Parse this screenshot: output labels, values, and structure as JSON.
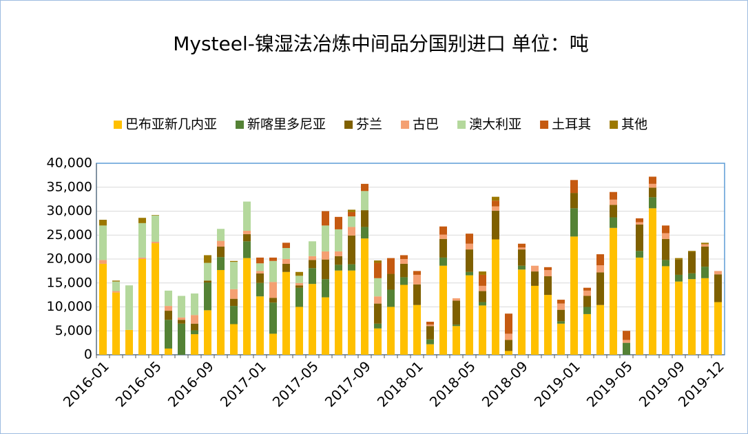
{
  "chart_data": {
    "type": "stacked_bar",
    "title": "Mysteel-镍湿法冶炼中间品分国别进口 单位：吨",
    "categories": [
      "2016-01",
      null,
      null,
      null,
      "2016-05",
      null,
      null,
      null,
      "2016-09",
      null,
      null,
      null,
      "2017-01",
      null,
      null,
      null,
      "2017-05",
      null,
      null,
      null,
      "2017-09",
      null,
      null,
      null,
      "2018-01",
      null,
      null,
      null,
      "2018-05",
      null,
      null,
      null,
      "2018-09",
      null,
      null,
      null,
      "2019-01",
      null,
      null,
      null,
      "2019-05",
      null,
      null,
      null,
      "2019-09",
      null,
      null,
      "2019-12"
    ],
    "series": [
      {
        "name": "巴布亚新几内亚",
        "color": "#ffc000",
        "values": [
          19000,
          13000,
          5200,
          20000,
          23300,
          1300,
          0,
          4300,
          9300,
          17700,
          6400,
          20200,
          12200,
          4400,
          17300,
          10000,
          14800,
          12000,
          17600,
          17600,
          24300,
          5500,
          10000,
          14600,
          10400,
          2200,
          18600,
          6000,
          16600,
          10300,
          24100,
          800,
          17800,
          14400,
          12500,
          6500,
          24700,
          8500,
          10400,
          26500,
          0,
          20300,
          30600,
          18500,
          15300,
          15800,
          16000,
          11000
        ]
      },
      {
        "name": "新喀里多尼亚",
        "color": "#548235",
        "values": [
          0,
          0,
          0,
          0,
          0,
          6000,
          6500,
          800,
          5800,
          2700,
          3800,
          3500,
          2800,
          6500,
          0,
          4000,
          3300,
          3800,
          1200,
          1300,
          2400,
          1000,
          3600,
          1600,
          0,
          1000,
          1700,
          300,
          700,
          700,
          0,
          0,
          800,
          0,
          0,
          500,
          5900,
          1500,
          0,
          2200,
          2500,
          1400,
          2300,
          1300,
          1400,
          1200,
          2400,
          0
        ]
      },
      {
        "name": "芬兰",
        "color": "#7f6000",
        "values": [
          0,
          0,
          0,
          0,
          0,
          1900,
          800,
          1400,
          400,
          2200,
          1500,
          1500,
          2000,
          1000,
          1700,
          500,
          1700,
          4100,
          1800,
          6000,
          3500,
          4200,
          3300,
          2800,
          4300,
          2800,
          3900,
          5000,
          4700,
          2300,
          6000,
          2300,
          3400,
          3000,
          3900,
          2400,
          3200,
          2300,
          6800,
          2600,
          0,
          5500,
          2000,
          4400,
          3200,
          4500,
          4200,
          5800
        ]
      },
      {
        "name": "古巴",
        "color": "#f4a072",
        "values": [
          800,
          300,
          0,
          300,
          300,
          1000,
          500,
          1800,
          0,
          1200,
          2000,
          700,
          500,
          3300,
          1000,
          500,
          800,
          1700,
          1000,
          1800,
          0,
          1500,
          0,
          1000,
          2000,
          300,
          900,
          500,
          1200,
          1100,
          900,
          1300,
          400,
          1200,
          1300,
          1300,
          0,
          1100,
          1500,
          1100,
          600,
          500,
          800,
          1200,
          0,
          0,
          500,
          700
        ]
      },
      {
        "name": "澳大利亚",
        "color": "#b4d89c",
        "values": [
          7200,
          2000,
          9300,
          7200,
          5500,
          3200,
          4500,
          4500,
          3700,
          2500,
          5700,
          6100,
          1600,
          4400,
          2300,
          1500,
          3100,
          5400,
          4600,
          2200,
          4000,
          3800,
          0,
          0,
          0,
          0,
          0,
          0,
          0,
          0,
          0,
          0,
          0,
          0,
          0,
          0,
          0,
          0,
          0,
          0,
          0,
          0,
          0,
          0,
          0,
          0,
          0,
          0
        ]
      },
      {
        "name": "土耳其",
        "color": "#c55a11",
        "values": [
          0,
          0,
          0,
          0,
          0,
          0,
          0,
          0,
          0,
          0,
          0,
          0,
          1200,
          700,
          1100,
          0,
          0,
          3000,
          2600,
          900,
          1500,
          3200,
          3300,
          800,
          800,
          600,
          1700,
          0,
          2100,
          2300,
          1200,
          4200,
          800,
          0,
          600,
          800,
          2700,
          600,
          2300,
          1600,
          1900,
          800,
          1500,
          1600,
          0,
          0,
          0,
          0
        ]
      },
      {
        "name": "其他",
        "color": "#9c7800",
        "values": [
          1200,
          200,
          0,
          1100,
          100,
          0,
          0,
          0,
          1600,
          0,
          200,
          0,
          0,
          0,
          0,
          800,
          0,
          0,
          0,
          500,
          0,
          500,
          0,
          0,
          0,
          0,
          0,
          0,
          0,
          700,
          800,
          0,
          0,
          0,
          0,
          0,
          0,
          0,
          0,
          0,
          0,
          0,
          0,
          0,
          300,
          200,
          300,
          0
        ]
      }
    ],
    "ylim": [
      0,
      40000
    ],
    "yticks": [
      0,
      {
        "value": 5000,
        "label": "5,000"
      },
      {
        "value": 10000,
        "label": "10,000"
      },
      {
        "value": 15000,
        "label": "15,000"
      },
      {
        "value": 20000,
        "label": "20,000"
      },
      {
        "value": 25000,
        "label": "25,000"
      },
      {
        "value": 30000,
        "label": "30,000"
      },
      {
        "value": 35000,
        "label": "35,000"
      },
      {
        "value": 40000,
        "label": "40,000"
      }
    ],
    "grid": true,
    "legend": "top"
  }
}
